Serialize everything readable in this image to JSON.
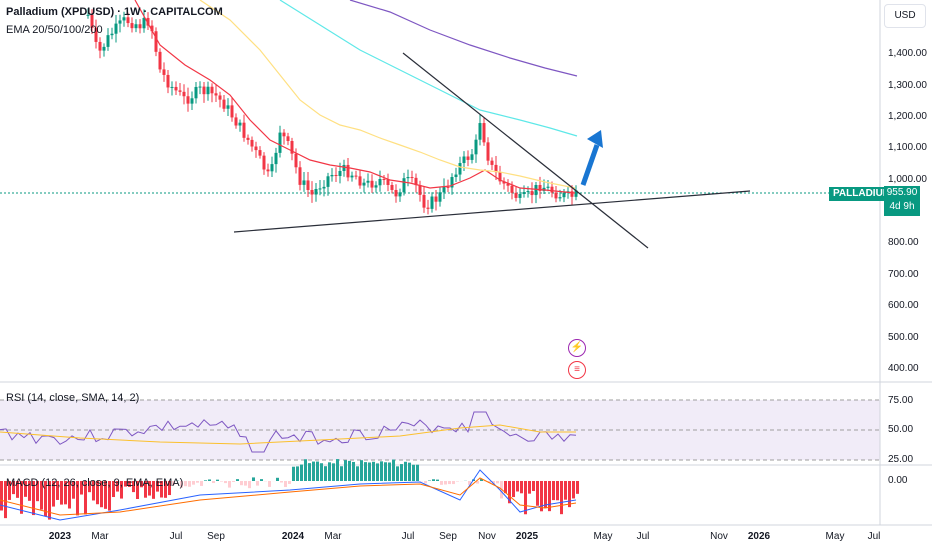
{
  "legend": {
    "title": "Palladium (XPDUSD) · 1W · CAPITALCOM",
    "ema": "EMA 20/50/100/200",
    "rsi": "RSI (14, close, SMA, 14, 2)",
    "macd": "MACD (12, 26, close, 9, EMA, EMA)"
  },
  "price_axis": {
    "currency": "USD",
    "labels": [
      "1,400.00",
      "1,300.00",
      "1,200.00",
      "1,100.00",
      "1,000.00",
      "800.00",
      "700.00",
      "600.00",
      "500.00",
      "400.00"
    ]
  },
  "rsi_axis": {
    "labels": [
      "75.00",
      "50.00",
      "25.00"
    ]
  },
  "macd_axis": {
    "labels": [
      "0.00"
    ]
  },
  "time_axis": {
    "labels": [
      "2023",
      "Mar",
      "Jul",
      "Sep",
      "2024",
      "Mar",
      "Jul",
      "Sep",
      "Nov",
      "2025",
      "May",
      "Jul",
      "Nov",
      "2026",
      "May",
      "Jul"
    ]
  },
  "price_tag": {
    "symbol": "PALLADIUM",
    "price": "955.90",
    "countdown": "4d 9h"
  },
  "icons": {
    "event1": "lightning-icon",
    "event2": "us-flag-icon"
  },
  "colors": {
    "up": "#089981",
    "down": "#f23645",
    "ema20": "#f23645",
    "ema50": "#ffe082",
    "ema100": "#5ee8e8",
    "ema200": "#7e57c2",
    "rsi": "#7e57c2",
    "arrow": "#1976d2"
  }
}
